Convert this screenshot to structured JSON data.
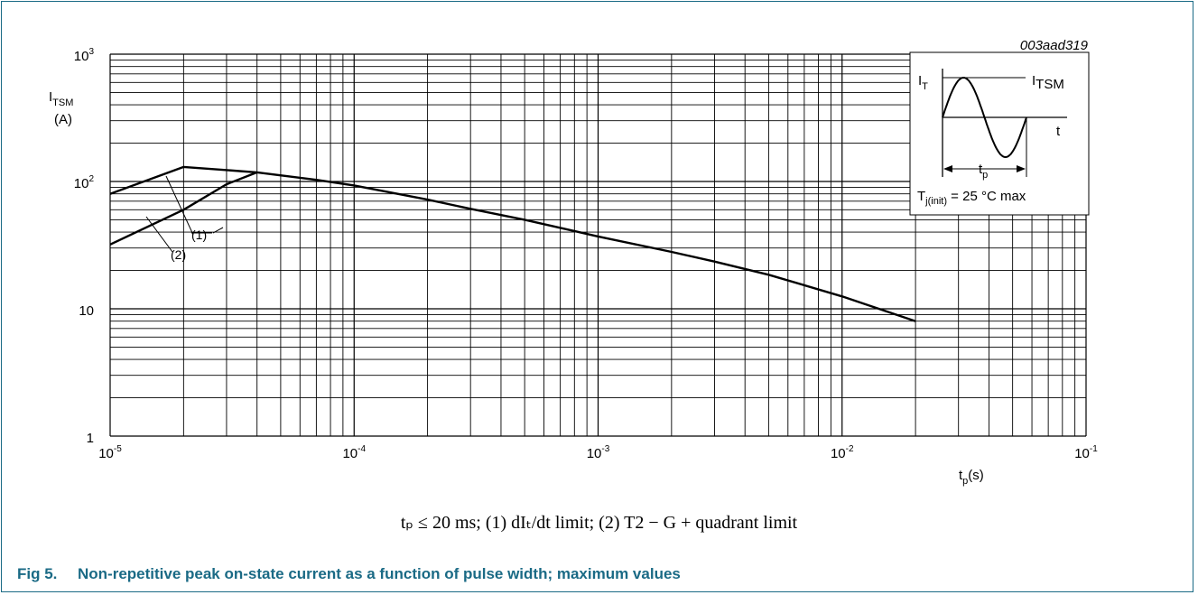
{
  "figure_id": "003aad319",
  "caption": {
    "number": "Fig 5.",
    "title": "Non-repetitive peak on-state current as a function of pulse width; maximum values"
  },
  "note": "tₚ ≤ 20 ms; (1) dIₜ/dt limit; (2) T2 − G + quadrant limit",
  "inset": {
    "label_current": "I",
    "label_current_sub": "T",
    "label_peak": "I",
    "label_peak_sub": "TSM",
    "label_time": "t",
    "label_pulse": "t",
    "label_pulse_sub": "p",
    "condition_main": "T",
    "condition_sub": "j(init)",
    "condition_rest": " = 25 °C max"
  },
  "chart_data": {
    "type": "line",
    "x_scale": "log",
    "y_scale": "log",
    "xlim": [
      1e-05,
      0.1
    ],
    "ylim": [
      1,
      1000
    ],
    "grid": true,
    "ylabel_main": "I",
    "ylabel_sub": "TSM",
    "ylabel_unit": "(A)",
    "xlabel_main": "t",
    "xlabel_sub": "p",
    "xlabel_unit": "(s)",
    "x_tick_labels": [
      {
        "base": "10",
        "exp": "-5"
      },
      {
        "base": "10",
        "exp": "-4"
      },
      {
        "base": "10",
        "exp": "-3"
      },
      {
        "base": "10",
        "exp": "-2"
      },
      {
        "base": "10",
        "exp": "-1"
      }
    ],
    "y_tick_labels": [
      {
        "base": "1",
        "exp": ""
      },
      {
        "base": "10",
        "exp": ""
      },
      {
        "base": "10",
        "exp": "2"
      },
      {
        "base": "10",
        "exp": "3"
      }
    ],
    "annotations": [
      "(1)",
      "(2)"
    ],
    "series": [
      {
        "x": [
          1e-05,
          2e-05,
          4e-05,
          7e-05,
          0.0001,
          0.0002,
          0.0003,
          0.0005,
          0.001,
          0.002,
          0.003,
          0.005,
          0.01,
          0.02
        ],
        "y": [
          80,
          130,
          118,
          103,
          93,
          72,
          61,
          50,
          37,
          28,
          23.5,
          18.5,
          12.5,
          8
        ]
      },
      {
        "x": [
          1e-05,
          2e-05,
          3e-05,
          4e-05
        ],
        "y": [
          32,
          60,
          95,
          118
        ]
      }
    ]
  }
}
